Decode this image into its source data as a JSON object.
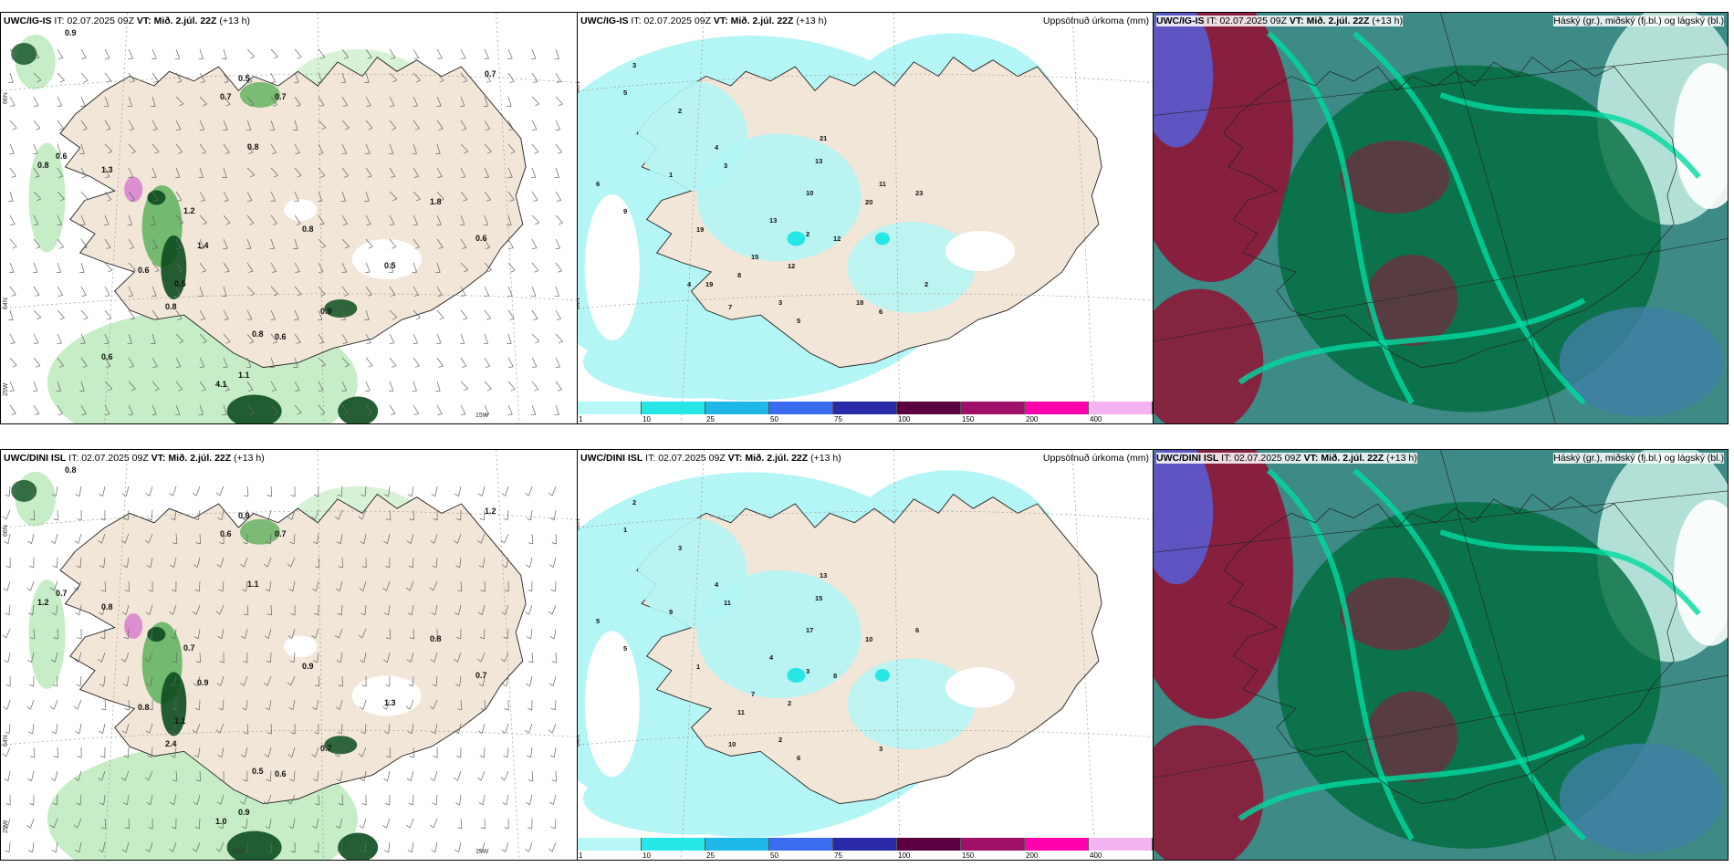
{
  "panels": [
    {
      "id": "r1c1",
      "model": "UWC/IG-IS",
      "it_label": "IT:",
      "it": "02.07.2025 09Z",
      "vt_label": "VT:",
      "vt": "Mið. 2.júl. 22Z",
      "lead": "(+13 h)",
      "title_right": ""
    },
    {
      "id": "r1c2",
      "model": "UWC/IG-IS",
      "it_label": "IT:",
      "it": "02.07.2025 09Z",
      "vt_label": "VT:",
      "vt": "Mið. 2.júl. 22Z",
      "lead": "(+13 h)",
      "title_right": "Uppsöfnuð úrkoma (mm)"
    },
    {
      "id": "r1c3",
      "model": "UWC/IG-IS",
      "it_label": "IT:",
      "it": "02.07.2025 09Z",
      "vt_label": "VT:",
      "vt": "Mið. 2.júl. 22Z",
      "lead": "(+13 h)",
      "title_right": "Háský (gr.), miðský (fj.bl.) og lágský (bl.)"
    },
    {
      "id": "r2c1",
      "model": "UWC/DINI ISL",
      "it_label": "IT:",
      "it": "02.07.2025 09Z",
      "vt_label": "VT:",
      "vt": "Mið. 2.júl. 22Z",
      "lead": "(+13 h)",
      "title_right": ""
    },
    {
      "id": "r2c2",
      "model": "UWC/DINI ISL",
      "it_label": "IT:",
      "it": "02.07.2025 09Z",
      "vt_label": "VT:",
      "vt": "Mið. 2.júl. 22Z",
      "lead": "(+13 h)",
      "title_right": "Uppsöfnuð úrkoma (mm)"
    },
    {
      "id": "r2c3",
      "model": "UWC/DINI ISL",
      "it_label": "IT:",
      "it": "02.07.2025 09Z",
      "vt_label": "VT:",
      "vt": "Mið. 2.júl. 22Z",
      "lead": "(+13 h)",
      "title_right": "Háský (gr.), miðský (fj.bl.) og lágský (bl.)"
    }
  ],
  "grid_labels": {
    "lat66": "66N",
    "lat64": "64N",
    "lon25": "25W",
    "lon20": "20W",
    "lon15": "15W"
  },
  "colorbar": {
    "ticks": [
      "1",
      "10",
      "25",
      "50",
      "75",
      "100",
      "150",
      "200",
      "400"
    ],
    "colors": [
      "#b8f7f7",
      "#27e6e6",
      "#1fb8e6",
      "#3a6cf0",
      "#2a2aa8",
      "#5a0040",
      "#a0106a",
      "#ff00aa",
      "#f3b3f3"
    ]
  },
  "colors": {
    "land": "#f2e6d8",
    "precip_light": "#b4f5f5",
    "wind_green_light": "#c6edc6",
    "wind_green": "#5db05d",
    "wind_dark": "#0d4d1f",
    "cloud_high": "#006b3c",
    "cloud_mid": "#00d9a0",
    "cloud_low": "#2f7da8",
    "cloud_red": "#8b1a3a"
  },
  "r1c1_labels": [
    "0.8",
    "0.6",
    "0.9",
    "0.5",
    "0.7",
    "1.3",
    "0.8",
    "0.7",
    "1.2",
    "1.4",
    "0.6",
    "0.5",
    "0.8",
    "1.1",
    "4.1",
    "0.6",
    "0.8",
    "0.5",
    "0.8",
    "0.9",
    "1.8",
    "0.6",
    "0.7",
    "0.6"
  ],
  "r1c2_labels": [
    "3",
    "5",
    "2",
    "6",
    "4",
    "1",
    "3",
    "21",
    "13",
    "10",
    "20",
    "13",
    "23",
    "2",
    "19",
    "12",
    "9",
    "15",
    "8",
    "7",
    "12",
    "3",
    "5",
    "6",
    "2",
    "11",
    "4",
    "19",
    "18"
  ],
  "r2c1_labels": [
    "1.2",
    "0.7",
    "0.8",
    "0.9",
    "0.7",
    "0.8",
    "1.1",
    "0.6",
    "0.7",
    "0.9",
    "0.8",
    "1.1",
    "0.5",
    "0.9",
    "1.0",
    "0.6",
    "0.9",
    "1.3",
    "2.4",
    "0.7",
    "0.8",
    "0.7",
    "1.2"
  ],
  "r2c2_labels": [
    "2",
    "1",
    "3",
    "5",
    "4",
    "9",
    "11",
    "13",
    "15",
    "17",
    "10",
    "4",
    "6",
    "3",
    "1",
    "2",
    "5",
    "7",
    "11",
    "10",
    "8",
    "2",
    "6",
    "3"
  ]
}
